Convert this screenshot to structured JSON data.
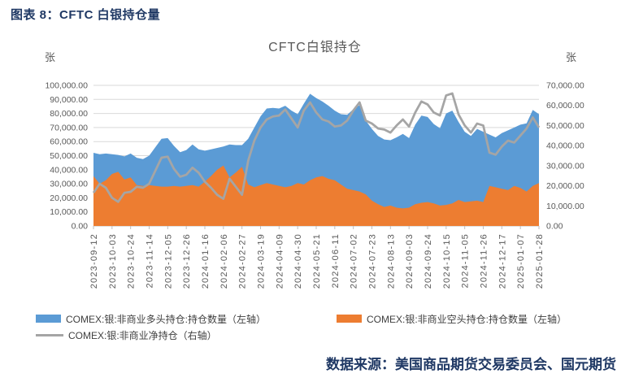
{
  "header": {
    "title": "图表 8：CFTC 白银持仓量"
  },
  "footer": {
    "source": "数据来源：美国商品期货交易委员会、国元期货"
  },
  "chart": {
    "title": "CFTC白银持仓",
    "left_axis_unit": "张",
    "right_axis_unit": "张",
    "colors": {
      "long_area": "#5B9BD5",
      "short_area": "#ED7D31",
      "net_line": "#A5A5A5",
      "grid": "#D9D9D9",
      "axis": "#BFBFBF",
      "text": "#595959",
      "heading": "#1f3864"
    }
  },
  "chart_data": {
    "type": "area",
    "title": "CFTC白银持仓",
    "xlabel": "",
    "ylabel_left": "张",
    "ylabel_right": "张",
    "grid": true,
    "legend_position": "bottom",
    "x_tick_every": 3,
    "x": [
      "2023-09-12",
      "2023-09-19",
      "2023-09-26",
      "2023-10-03",
      "2023-10-10",
      "2023-10-17",
      "2023-10-24",
      "2023-10-31",
      "2023-11-07",
      "2023-11-14",
      "2023-11-21",
      "2023-11-28",
      "2023-12-05",
      "2023-12-12",
      "2023-12-19",
      "2023-12-26",
      "2024-01-02",
      "2024-01-09",
      "2024-01-16",
      "2024-01-23",
      "2024-01-30",
      "2024-02-06",
      "2024-02-13",
      "2024-02-20",
      "2024-02-27",
      "2024-03-05",
      "2024-03-12",
      "2024-03-19",
      "2024-03-26",
      "2024-04-02",
      "2024-04-09",
      "2024-04-16",
      "2024-04-23",
      "2024-04-30",
      "2024-05-07",
      "2024-05-14",
      "2024-05-21",
      "2024-05-28",
      "2024-06-04",
      "2024-06-11",
      "2024-06-18",
      "2024-06-25",
      "2024-07-02",
      "2024-07-09",
      "2024-07-16",
      "2024-07-23",
      "2024-07-30",
      "2024-08-06",
      "2024-08-13",
      "2024-08-20",
      "2024-08-27",
      "2024-09-03",
      "2024-09-10",
      "2024-09-17",
      "2024-09-24",
      "2024-10-01",
      "2024-10-08",
      "2024-10-15",
      "2024-10-22",
      "2024-10-29",
      "2024-11-05",
      "2024-11-12",
      "2024-11-19",
      "2024-11-26",
      "2024-12-03",
      "2024-12-10",
      "2024-12-17",
      "2024-12-24",
      "2024-12-31",
      "2025-01-07",
      "2025-01-14",
      "2025-01-21",
      "2025-01-28"
    ],
    "series": [
      {
        "name": "COMEX:银:非商业多头持仓:持仓数量（左轴）",
        "type": "area",
        "axis": "left",
        "color": "#5B9BD5",
        "values": [
          52000,
          51000,
          51500,
          51000,
          50500,
          49500,
          51500,
          48500,
          47500,
          50000,
          56000,
          62000,
          62500,
          57000,
          52500,
          54000,
          58000,
          54500,
          53500,
          54500,
          55500,
          56500,
          58000,
          57500,
          57500,
          62000,
          70000,
          78000,
          83500,
          84000,
          83500,
          85500,
          82000,
          79500,
          87000,
          94000,
          91000,
          88500,
          85500,
          82000,
          79500,
          79000,
          83000,
          86000,
          75000,
          69000,
          64000,
          61500,
          61000,
          63000,
          65500,
          62500,
          72000,
          78500,
          77500,
          72500,
          69500,
          80000,
          82000,
          74000,
          67000,
          64000,
          69000,
          67000,
          65000,
          63000,
          66000,
          68000,
          70000,
          72000,
          73000,
          82500,
          79500
        ]
      },
      {
        "name": "COMEX:银:非商业空头持仓:持仓数量（左轴）",
        "type": "area",
        "axis": "left",
        "color": "#ED7D31",
        "values": [
          35500,
          30000,
          32500,
          37000,
          38500,
          33000,
          34500,
          29000,
          28500,
          29000,
          28500,
          28000,
          28000,
          28500,
          28000,
          28500,
          29000,
          28000,
          31500,
          35500,
          40000,
          43000,
          34500,
          38000,
          42000,
          29500,
          27500,
          29000,
          30500,
          29500,
          28500,
          27500,
          28500,
          30500,
          29500,
          32500,
          34500,
          35500,
          33500,
          32500,
          29500,
          26500,
          25500,
          24500,
          22500,
          18000,
          15500,
          13500,
          14500,
          13000,
          12500,
          13000,
          15500,
          16500,
          17000,
          16000,
          14500,
          15000,
          16000,
          18500,
          17000,
          17500,
          18000,
          17000,
          28500,
          27500,
          26500,
          25500,
          28500,
          27000,
          24500,
          28500,
          30500
        ]
      },
      {
        "name": "COMEX:银:非商业净持仓（右轴）",
        "type": "line",
        "axis": "right",
        "color": "#A5A5A5",
        "values": [
          16500,
          21000,
          19000,
          14000,
          12000,
          16500,
          17000,
          19500,
          19000,
          21000,
          27500,
          34000,
          34500,
          28500,
          24500,
          25500,
          29000,
          26500,
          22000,
          19000,
          15500,
          13500,
          23500,
          19500,
          15500,
          32500,
          42500,
          49000,
          53000,
          54500,
          55000,
          58000,
          53500,
          49000,
          57500,
          61500,
          56500,
          53000,
          52000,
          49500,
          50000,
          52500,
          57500,
          61500,
          52500,
          51000,
          48500,
          48000,
          46500,
          50000,
          53000,
          49500,
          56500,
          62000,
          60500,
          56500,
          55000,
          65000,
          66000,
          55500,
          50000,
          46500,
          51000,
          50000,
          36500,
          35500,
          39500,
          42500,
          41500,
          45000,
          48500,
          54000,
          49000
        ]
      }
    ],
    "left_axis": {
      "min": 0,
      "max": 100000,
      "step": 10000,
      "tick_labels": [
        "0.00",
        "10,000.00",
        "20,000.00",
        "30,000.00",
        "40,000.00",
        "50,000.00",
        "60,000.00",
        "70,000.00",
        "80,000.00",
        "90,000.00",
        "100,000.00"
      ]
    },
    "right_axis": {
      "min": 0,
      "max": 70000,
      "step": 10000,
      "tick_labels": [
        "0.00",
        "10,000.00",
        "20,000.00",
        "30,000.00",
        "40,000.00",
        "50,000.00",
        "60,000.00",
        "70,000.00"
      ]
    }
  }
}
